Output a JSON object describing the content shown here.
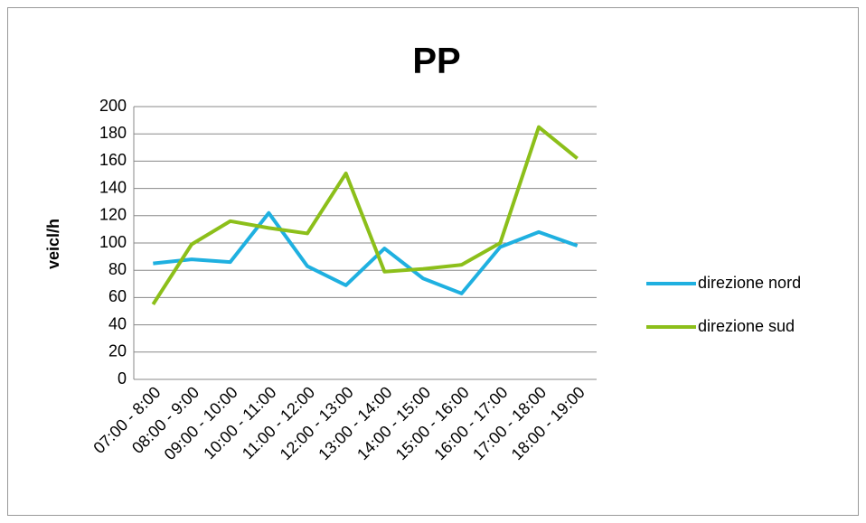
{
  "chart_data": {
    "type": "line",
    "title": "PP",
    "y_label": "veicl/h",
    "categories": [
      "07:00 - 8:00",
      "08:00 - 9:00",
      "09:00 - 10:00",
      "10:00 - 11:00",
      "11:00 - 12:00",
      "12:00 - 13:00",
      "13:00 - 14:00",
      "14:00 - 15:00",
      "15:00 - 16:00",
      "16:00 - 17:00",
      "17:00 - 18:00",
      "18:00 - 19:00"
    ],
    "series": [
      {
        "name": "direzione nord",
        "color": "#1fb0e0",
        "values": [
          85,
          88,
          86,
          122,
          83,
          69,
          96,
          74,
          63,
          97,
          108,
          98
        ]
      },
      {
        "name": "direzione sud",
        "color": "#8cbf1a",
        "values": [
          55,
          99,
          116,
          111,
          107,
          151,
          79,
          81,
          84,
          100,
          185,
          162
        ]
      }
    ],
    "ylim": [
      0,
      200
    ],
    "yticks": [
      0,
      20,
      40,
      60,
      80,
      100,
      120,
      140,
      160,
      180,
      200
    ],
    "grid": true,
    "legend": "right"
  }
}
